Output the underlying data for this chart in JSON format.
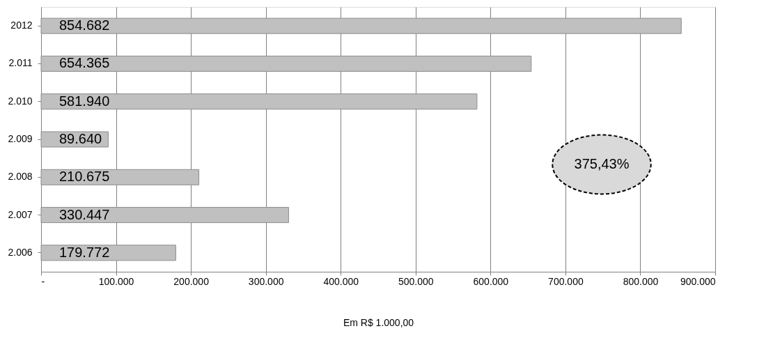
{
  "chart_data": {
    "type": "bar",
    "orientation": "horizontal",
    "categories": [
      "2012",
      "2.011",
      "2.010",
      "2.009",
      "2.008",
      "2.007",
      "2.006"
    ],
    "values": [
      854682,
      654365,
      581940,
      89640,
      210675,
      330447,
      179772
    ],
    "value_labels": [
      "854.682",
      "654.365",
      "581.940",
      "89.640",
      "210.675",
      "330.447",
      "179.772"
    ],
    "color": "#c0c0c0",
    "xlabel": "Em R$ 1.000,00",
    "xlim": [
      0,
      900000
    ],
    "xticks": [
      {
        "value": 0,
        "label": "-"
      },
      {
        "value": 100000,
        "label": "100.000"
      },
      {
        "value": 200000,
        "label": "200.000"
      },
      {
        "value": 300000,
        "label": "300.000"
      },
      {
        "value": 400000,
        "label": "400.000"
      },
      {
        "value": 500000,
        "label": "500.000"
      },
      {
        "value": 600000,
        "label": "600.000"
      },
      {
        "value": 700000,
        "label": "700.000"
      },
      {
        "value": 800000,
        "label": "800.000"
      },
      {
        "value": 900000,
        "label": "900.000"
      }
    ],
    "grid": "x",
    "annotations": [
      "375,43%"
    ]
  }
}
